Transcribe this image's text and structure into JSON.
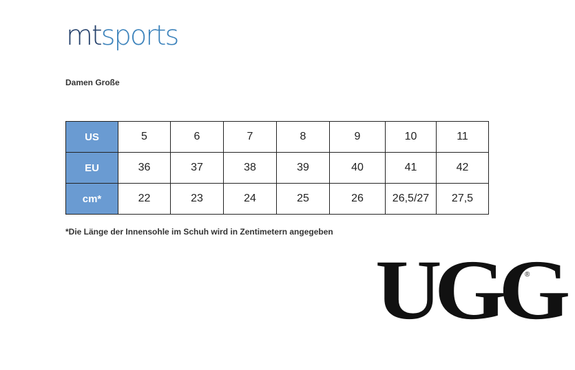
{
  "logo": {
    "part1": "mt",
    "part2": "sports"
  },
  "heading": "Damen Große",
  "table": {
    "rows": [
      {
        "header": "US",
        "cells": [
          "5",
          "6",
          "7",
          "8",
          "9",
          "10",
          "11"
        ]
      },
      {
        "header": "EU",
        "cells": [
          "36",
          "37",
          "38",
          "39",
          "40",
          "41",
          "42"
        ]
      },
      {
        "header": "cm*",
        "cells": [
          "22",
          "23",
          "24",
          "25",
          "26",
          "26,5/27",
          "27,5"
        ]
      }
    ]
  },
  "footnote": "*Die Länge der Innensohle im Schuh wird in Zentimetern angegeben",
  "brand": {
    "name": "UGG",
    "mark": "®"
  }
}
